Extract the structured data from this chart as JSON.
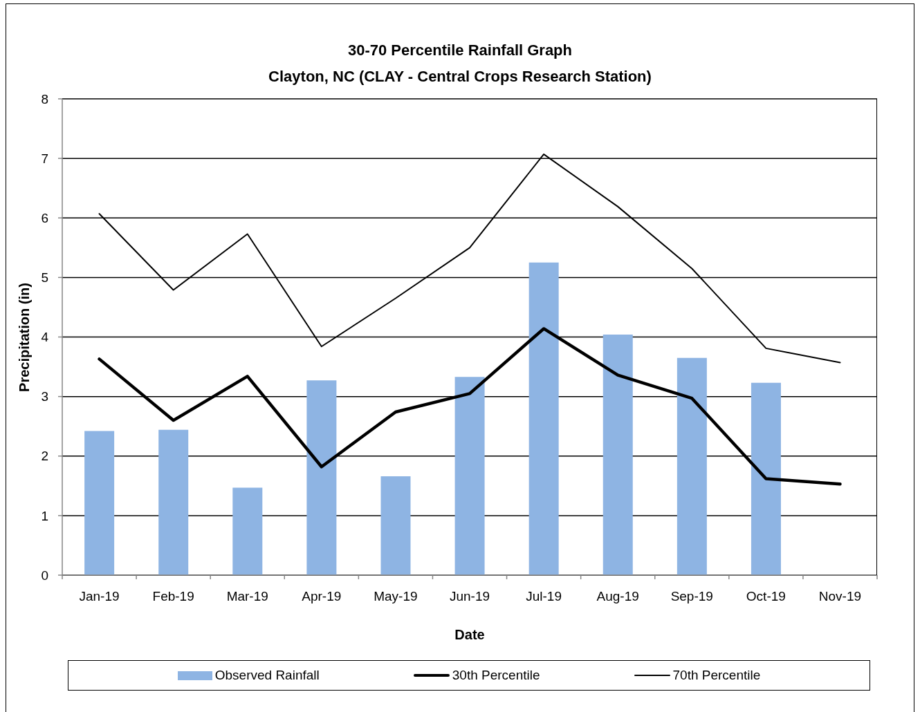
{
  "chart_data": {
    "type": "bar",
    "title": "30-70 Percentile Rainfall Graph",
    "subtitle": "Clayton, NC (CLAY - Central Crops Research Station)",
    "xlabel": "Date",
    "ylabel": "Precipitation (in)",
    "categories": [
      "Jan-19",
      "Feb-19",
      "Mar-19",
      "Apr-19",
      "May-19",
      "Jun-19",
      "Jul-19",
      "Aug-19",
      "Sep-19",
      "Oct-19",
      "Nov-19"
    ],
    "series": [
      {
        "name": "Observed Rainfall",
        "color": "#8eb4e3",
        "values": [
          2.42,
          2.44,
          1.47,
          3.27,
          1.66,
          3.33,
          5.25,
          4.04,
          3.65,
          3.23,
          null
        ]
      },
      {
        "name": "30th Percentile",
        "type": "line",
        "color": "#000000",
        "values": [
          3.63,
          2.6,
          3.34,
          1.82,
          2.74,
          3.05,
          4.14,
          3.36,
          2.97,
          1.62,
          1.53
        ]
      },
      {
        "name": "70th Percentile",
        "type": "line",
        "color": "#000000",
        "values": [
          6.07,
          4.79,
          5.73,
          3.84,
          4.65,
          5.5,
          7.07,
          6.19,
          5.15,
          3.81,
          3.57
        ]
      }
    ],
    "ylim": [
      0,
      8
    ],
    "yticks": [
      0,
      1,
      2,
      3,
      4,
      5,
      6,
      7,
      8
    ],
    "grid": "y",
    "legend": "bottom",
    "line_style": "solid"
  }
}
